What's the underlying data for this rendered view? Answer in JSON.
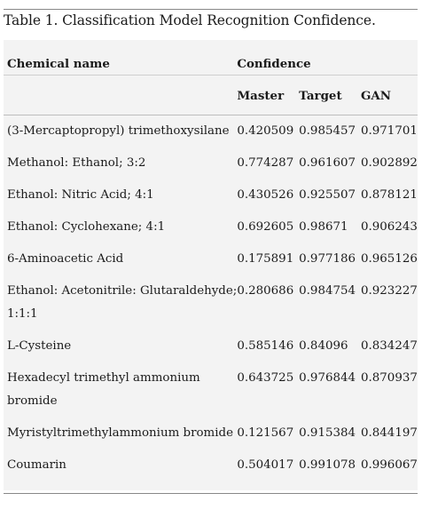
{
  "caption": "Table 1. Classification Model Recognition Confidence.",
  "table": {
    "header_name": "Chemical name",
    "header_group": "Confidence",
    "sub_headers": [
      "Master",
      "Target",
      "GAN"
    ],
    "rows": [
      {
        "name": "(3-Mercaptopropyl) trimethoxysilane",
        "name2": "",
        "master": "0.420509",
        "target": "0.985457",
        "gan": "0.971701"
      },
      {
        "name": "Methanol: Ethanol; 3:2",
        "name2": "",
        "master": "0.774287",
        "target": "0.961607",
        "gan": "0.902892"
      },
      {
        "name": "Ethanol: Nitric Acid; 4:1",
        "name2": "",
        "master": "0.430526",
        "target": "0.925507",
        "gan": "0.878121"
      },
      {
        "name": "Ethanol: Cyclohexane; 4:1",
        "name2": "",
        "master": "0.692605",
        "target": "0.98671",
        "gan": "0.906243"
      },
      {
        "name": "6-Aminoacetic Acid",
        "name2": "",
        "master": "0.175891",
        "target": "0.977186",
        "gan": "0.965126"
      },
      {
        "name": "Ethanol: Acetonitrile: Glutaraldehyde;",
        "name2": "1:1:1",
        "master": "0.280686",
        "target": "0.984754",
        "gan": "0.923227"
      },
      {
        "name": "L-Cysteine",
        "name2": "",
        "master": "0.585146",
        "target": "0.84096",
        "gan": "0.834247"
      },
      {
        "name": "Hexadecyl trimethyl ammonium",
        "name2": "bromide",
        "master": "0.643725",
        "target": "0.976844",
        "gan": "0.870937"
      },
      {
        "name": "Myristyltrimethylammonium bromide",
        "name2": "",
        "master": "0.121567",
        "target": "0.915384",
        "gan": "0.844197"
      },
      {
        "name": "Coumarin",
        "name2": "",
        "master": "0.504017",
        "target": "0.991078",
        "gan": "0.996067"
      }
    ]
  }
}
